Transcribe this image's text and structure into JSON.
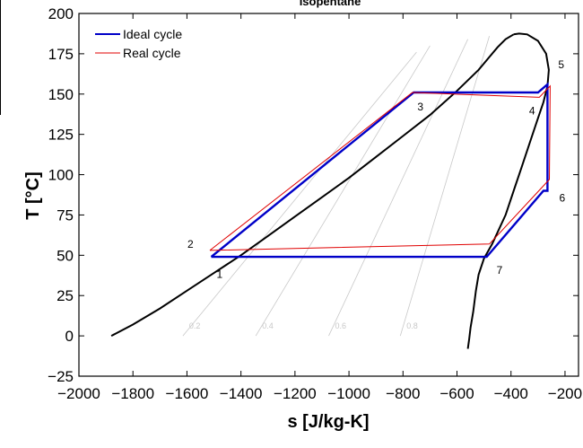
{
  "chart_data": {
    "type": "line",
    "title": "Isopentane",
    "xlabel": "s [J/kg-K]",
    "ylabel": "T [°C]",
    "xlim": [
      -2000,
      -150
    ],
    "ylim": [
      -25,
      200
    ],
    "xticks": [
      -2000,
      -1800,
      -1600,
      -1400,
      -1200,
      -1000,
      -800,
      -600,
      -400,
      -200
    ],
    "yticks": [
      -25,
      0,
      25,
      50,
      75,
      100,
      125,
      150,
      175,
      200
    ],
    "grid": false,
    "legend_placement": "top-left",
    "series": [
      {
        "name": "Ideal cycle",
        "color": "#0000c8",
        "x": [
          -1510,
          -760,
          -300,
          -265,
          -265,
          -280,
          -490,
          -1510
        ],
        "y": [
          49,
          151,
          151,
          156,
          90,
          90,
          49,
          49
        ]
      },
      {
        "name": "Real cycle",
        "color": "#e00000",
        "x": [
          -1515,
          -765,
          -295,
          -255,
          -258,
          -480,
          -1515
        ],
        "y": [
          53,
          151,
          148,
          155,
          97,
          57,
          53
        ]
      }
    ],
    "saturation_dome": {
      "color": "#000000",
      "liquid_x": [
        -1880,
        -1800,
        -1700,
        -1600,
        -1500,
        -1400,
        -1300,
        -1200,
        -1100,
        -1000,
        -900,
        -800,
        -700,
        -600,
        -520,
        -480,
        -450,
        -420,
        -390
      ],
      "liquid_y": [
        0,
        7,
        17,
        28,
        39,
        50,
        62,
        74,
        86,
        98,
        111,
        124,
        137,
        152,
        165,
        173,
        179,
        184,
        187
      ],
      "vapor_x": [
        -390,
        -370,
        -340,
        -300,
        -270,
        -260,
        -265,
        -280,
        -300,
        -330,
        -360,
        -390,
        -420,
        -470,
        -500,
        -520,
        -530,
        -540,
        -550,
        -555,
        -560
      ],
      "vapor_y": [
        187,
        187.5,
        187,
        183,
        175,
        165,
        155,
        145,
        135,
        120,
        105,
        90,
        75,
        57,
        48,
        38,
        28,
        15,
        5,
        -2,
        -8
      ]
    },
    "quality_lines": [
      {
        "label": "0.2",
        "x": [
          -1615,
          -750
        ],
        "y": [
          0,
          176
        ]
      },
      {
        "label": "0.4",
        "x": [
          -1345,
          -700
        ],
        "y": [
          0,
          180
        ]
      },
      {
        "label": "0.6",
        "x": [
          -1075,
          -560
        ],
        "y": [
          0,
          184
        ]
      },
      {
        "label": "0.8",
        "x": [
          -810,
          -480
        ],
        "y": [
          0,
          186
        ]
      }
    ],
    "state_points": [
      {
        "label": "1",
        "x": -1500,
        "y": 45
      },
      {
        "label": "2",
        "x": -1515,
        "y": 53
      },
      {
        "label": "3",
        "x": -760,
        "y": 151
      },
      {
        "label": "4",
        "x": -300,
        "y": 149
      },
      {
        "label": "5",
        "x": -265,
        "y": 156
      },
      {
        "label": "6",
        "x": -258,
        "y": 90
      },
      {
        "label": "7",
        "x": -490,
        "y": 49
      }
    ]
  }
}
